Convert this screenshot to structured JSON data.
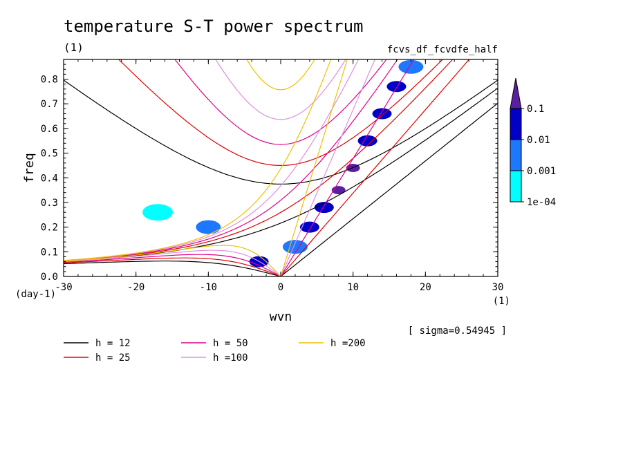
{
  "chart_data": {
    "type": "heatmap",
    "title": "temperature S-T power spectrum",
    "subtitle": "(1)",
    "source_label": "fcvs_df_fcvdfe_half",
    "xlabel": "wvn",
    "ylabel": "freq",
    "x_unit": "(1)",
    "y_unit": "(day-1)",
    "xlim": [
      -30,
      30
    ],
    "ylim": [
      0,
      0.88
    ],
    "x_ticks": [
      -30,
      -20,
      -10,
      0,
      10,
      20,
      30
    ],
    "x_tick_labels": [
      "-30",
      "-20",
      "-10",
      "0",
      "10",
      "20",
      "30"
    ],
    "y_ticks": [
      0,
      0.1,
      0.2,
      0.3,
      0.4,
      0.5,
      0.6,
      0.7,
      0.8
    ],
    "y_tick_labels": [
      "0.0",
      "0.1",
      "0.2",
      "0.3",
      "0.4",
      "0.5",
      "0.6",
      "0.7",
      "0.8"
    ],
    "annotation": "[ sigma=0.54945 ]",
    "colorbar": {
      "levels": [
        0.0001,
        0.001,
        0.01,
        0.1
      ],
      "labels": [
        "1e-04",
        "0.001",
        "0.01",
        "0.1"
      ],
      "colors": [
        "#00ffff",
        "#1e78ff",
        "#0000c8",
        "#5a1ea0"
      ]
    },
    "dispersion_curves": [
      {
        "name": "h = 12",
        "h": 12,
        "color": "#000000"
      },
      {
        "name": "h = 25",
        "h": 25,
        "color": "#e00000"
      },
      {
        "name": "h = 50",
        "h": 50,
        "color": "#e0008c"
      },
      {
        "name": "h =100",
        "h": 100,
        "color": "#e090e0"
      },
      {
        "name": "h =200",
        "h": 200,
        "color": "#f0c000"
      }
    ],
    "power_regions": [
      {
        "level": 0.001,
        "x": 2,
        "y": 0.12
      },
      {
        "level": 0.01,
        "x": 4,
        "y": 0.2
      },
      {
        "level": 0.01,
        "x": 6,
        "y": 0.28
      },
      {
        "level": 0.1,
        "x": 8,
        "y": 0.35
      },
      {
        "level": 0.1,
        "x": 10,
        "y": 0.44
      },
      {
        "level": 0.01,
        "x": 12,
        "y": 0.55
      },
      {
        "level": 0.01,
        "x": 14,
        "y": 0.66
      },
      {
        "level": 0.01,
        "x": 16,
        "y": 0.77
      },
      {
        "level": 0.001,
        "x": 18,
        "y": 0.85
      },
      {
        "level": 0.01,
        "x": -3,
        "y": 0.06
      },
      {
        "level": 0.001,
        "x": -10,
        "y": 0.2
      },
      {
        "level": 0.0001,
        "x": -17,
        "y": 0.26
      }
    ]
  }
}
